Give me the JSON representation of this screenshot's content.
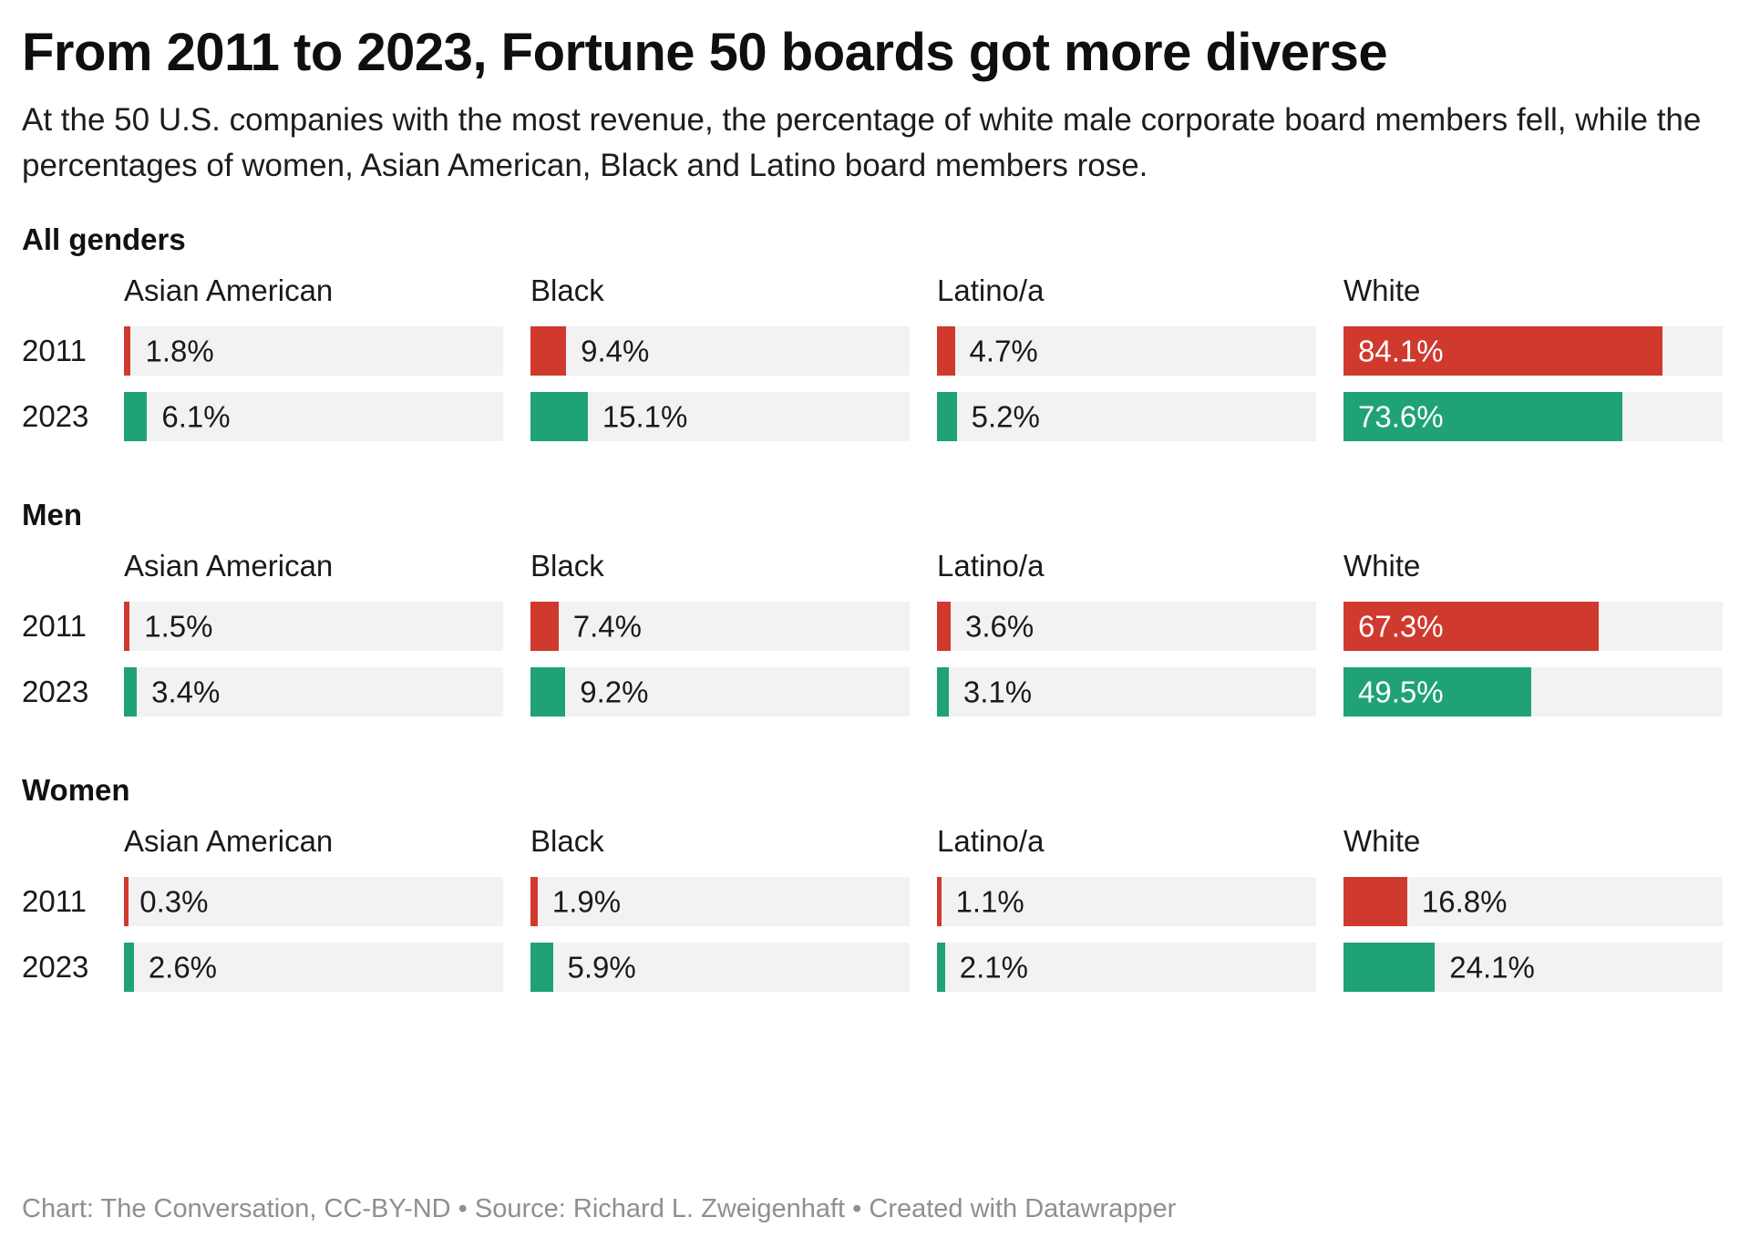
{
  "header": {
    "title": "From 2011 to 2023, Fortune 50 boards got more diverse",
    "subtitle": "At the 50 U.S. companies with the most revenue, the percentage of white male corporate board members fell, while the percentages of women, Asian American, Black and Latino board members rose."
  },
  "footer": {
    "text": "Chart: The Conversation, CC-BY-ND • Source: Richard L. Zweigenhaft • Created with Datawrapper"
  },
  "chart_data": {
    "type": "bar",
    "orientation": "horizontal",
    "unit": "%",
    "xlim": [
      0,
      100
    ],
    "grid": false,
    "legend_position": "none",
    "years": [
      "2011",
      "2023"
    ],
    "year_colors": {
      "2011": "#d0392e",
      "2023": "#20a279"
    },
    "track_color": "#f2f2f2",
    "inside_label_threshold": 30,
    "categories": [
      "Asian American",
      "Black",
      "Latino/a",
      "White"
    ],
    "panels": [
      {
        "label": "All genders",
        "values": {
          "Asian American": {
            "2011": 1.8,
            "2023": 6.1
          },
          "Black": {
            "2011": 9.4,
            "2023": 15.1
          },
          "Latino/a": {
            "2011": 4.7,
            "2023": 5.2
          },
          "White": {
            "2011": 84.1,
            "2023": 73.6
          }
        }
      },
      {
        "label": "Men",
        "values": {
          "Asian American": {
            "2011": 1.5,
            "2023": 3.4
          },
          "Black": {
            "2011": 7.4,
            "2023": 9.2
          },
          "Latino/a": {
            "2011": 3.6,
            "2023": 3.1
          },
          "White": {
            "2011": 67.3,
            "2023": 49.5
          }
        }
      },
      {
        "label": "Women",
        "values": {
          "Asian American": {
            "2011": 0.3,
            "2023": 2.6
          },
          "Black": {
            "2011": 1.9,
            "2023": 5.9
          },
          "Latino/a": {
            "2011": 1.1,
            "2023": 2.1
          },
          "White": {
            "2011": 16.8,
            "2023": 24.1
          }
        }
      }
    ]
  }
}
